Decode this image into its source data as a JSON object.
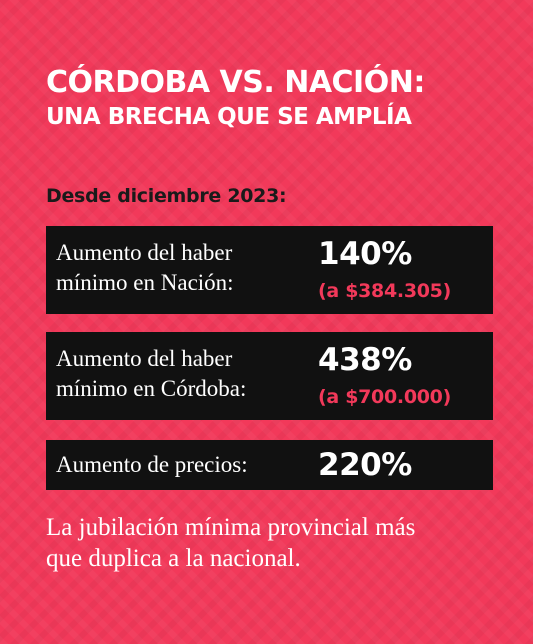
{
  "headline": {
    "line1": "CÓRDOBA VS. NACIÓN:",
    "line2": "UNA BRECHA QUE SE AMPLÍA"
  },
  "since": "Desde diciembre 2023:",
  "rows": [
    {
      "label_line1": "Aumento del haber",
      "label_line2": "mínimo en Nación:",
      "percent": "140%",
      "amount": "(a $384.305)"
    },
    {
      "label_line1": "Aumento del haber",
      "label_line2": "mínimo en Córdoba:",
      "percent": "438%",
      "amount": "(a $700.000)"
    },
    {
      "label_line1": "Aumento de precios:",
      "percent": "220%"
    }
  ],
  "footer": {
    "line1": "La jubilación mínima provincial más",
    "line2": "que duplica a la nacional."
  },
  "colors": {
    "background": "#f2395a",
    "card": "#111111",
    "accent": "#f2395a",
    "text": "#ffffff",
    "subtitle": "#1a1a1a"
  }
}
